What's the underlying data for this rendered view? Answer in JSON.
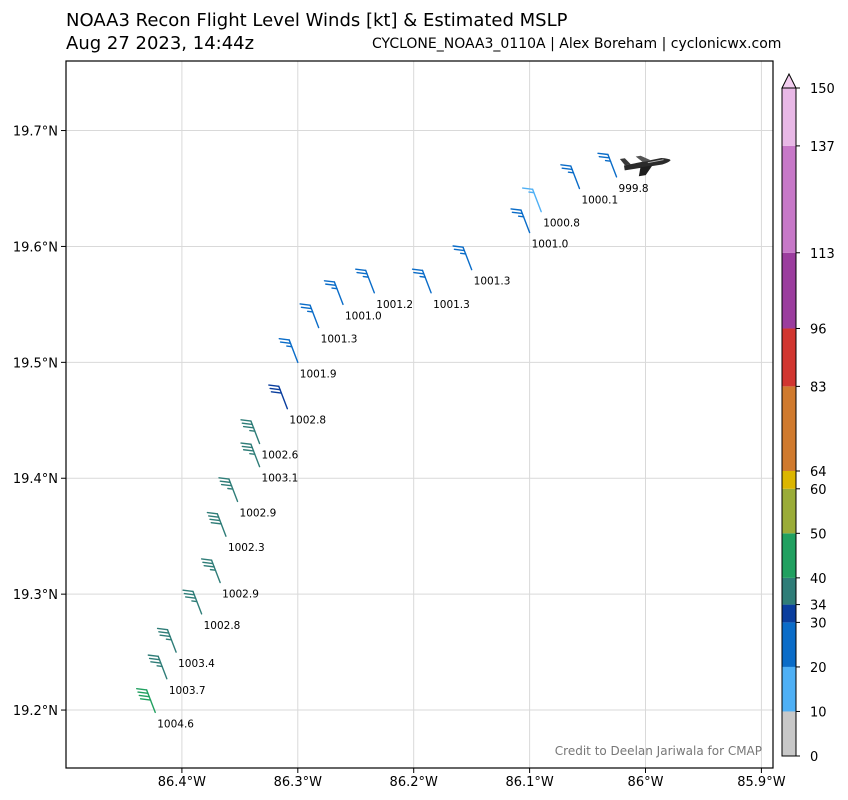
{
  "header": {
    "title_line1": "NOAA3 Recon Flight Level Winds [kt] & Estimated MSLP",
    "title_line2": "Aug 27 2023, 14:44z",
    "subtitle": "CYCLONE_NOAA3_0110A | Alex Boreham | cyclonicwx.com"
  },
  "credit": "Credit to Deelan Jariwala for CMAP",
  "chart_data": {
    "type": "scatter",
    "marker": "wind-barb",
    "xlim": [
      -86.5,
      -85.89
    ],
    "ylim": [
      19.15,
      19.76
    ],
    "x_ticks": [
      {
        "value": -86.4,
        "label": "86.4°W"
      },
      {
        "value": -86.3,
        "label": "86.3°W"
      },
      {
        "value": -86.2,
        "label": "86.2°W"
      },
      {
        "value": -86.1,
        "label": "86.1°W"
      },
      {
        "value": -86.0,
        "label": "86°W"
      },
      {
        "value": -85.9,
        "label": "85.9°W"
      }
    ],
    "y_ticks": [
      {
        "value": 19.2,
        "label": "19.2°N"
      },
      {
        "value": 19.3,
        "label": "19.3°N"
      },
      {
        "value": 19.4,
        "label": "19.4°N"
      },
      {
        "value": 19.5,
        "label": "19.5°N"
      },
      {
        "value": 19.6,
        "label": "19.6°N"
      },
      {
        "value": 19.7,
        "label": "19.7°N"
      }
    ],
    "grid": true,
    "colorbar": {
      "title": "",
      "bounds": [
        0,
        10,
        20,
        30,
        34,
        40,
        50,
        60,
        64,
        83,
        96,
        113,
        137,
        150
      ],
      "colors": [
        "#c8c8c8",
        "#4fb0f5",
        "#0a6cc8",
        "#0a3e9e",
        "#2f7d78",
        "#21a060",
        "#9aac38",
        "#dcb600",
        "#d07a2e",
        "#d13630",
        "#9b3d9e",
        "#c778c8",
        "#e8b8e6"
      ],
      "extend_top_color": "#f2cdef"
    },
    "observations": [
      {
        "lon": -86.423,
        "lat": 19.198,
        "wind_kt": 40,
        "mslp": "1004.6"
      },
      {
        "lon": -86.413,
        "lat": 19.227,
        "wind_kt": 36,
        "mslp": "1003.7"
      },
      {
        "lon": -86.405,
        "lat": 19.25,
        "wind_kt": 35,
        "mslp": "1003.4"
      },
      {
        "lon": -86.383,
        "lat": 19.283,
        "wind_kt": 36,
        "mslp": "1002.8"
      },
      {
        "lon": -86.367,
        "lat": 19.31,
        "wind_kt": 36,
        "mslp": "1002.9"
      },
      {
        "lon": -86.362,
        "lat": 19.35,
        "wind_kt": 39,
        "mslp": "1002.3"
      },
      {
        "lon": -86.352,
        "lat": 19.38,
        "wind_kt": 36,
        "mslp": "1002.9"
      },
      {
        "lon": -86.333,
        "lat": 19.41,
        "wind_kt": 35,
        "mslp": "1003.1"
      },
      {
        "lon": -86.333,
        "lat": 19.43,
        "wind_kt": 35,
        "mslp": "1002.6"
      },
      {
        "lon": -86.309,
        "lat": 19.46,
        "wind_kt": 32,
        "mslp": "1002.8"
      },
      {
        "lon": -86.3,
        "lat": 19.5,
        "wind_kt": 27,
        "mslp": "1001.9"
      },
      {
        "lon": -86.282,
        "lat": 19.53,
        "wind_kt": 25,
        "mslp": "1001.3"
      },
      {
        "lon": -86.261,
        "lat": 19.55,
        "wind_kt": 25,
        "mslp": "1001.0"
      },
      {
        "lon": -86.234,
        "lat": 19.56,
        "wind_kt": 25,
        "mslp": "1001.2"
      },
      {
        "lon": -86.185,
        "lat": 19.56,
        "wind_kt": 25,
        "mslp": "1001.3"
      },
      {
        "lon": -86.15,
        "lat": 19.58,
        "wind_kt": 25,
        "mslp": "1001.3"
      },
      {
        "lon": -86.1,
        "lat": 19.612,
        "wind_kt": 25,
        "mslp": "1001.0"
      },
      {
        "lon": -86.09,
        "lat": 19.63,
        "wind_kt": 15,
        "mslp": "1000.8"
      },
      {
        "lon": -86.057,
        "lat": 19.65,
        "wind_kt": 25,
        "mslp": "1000.1"
      },
      {
        "lon": -86.025,
        "lat": 19.66,
        "wind_kt": 25,
        "mslp": "999.8"
      }
    ]
  }
}
